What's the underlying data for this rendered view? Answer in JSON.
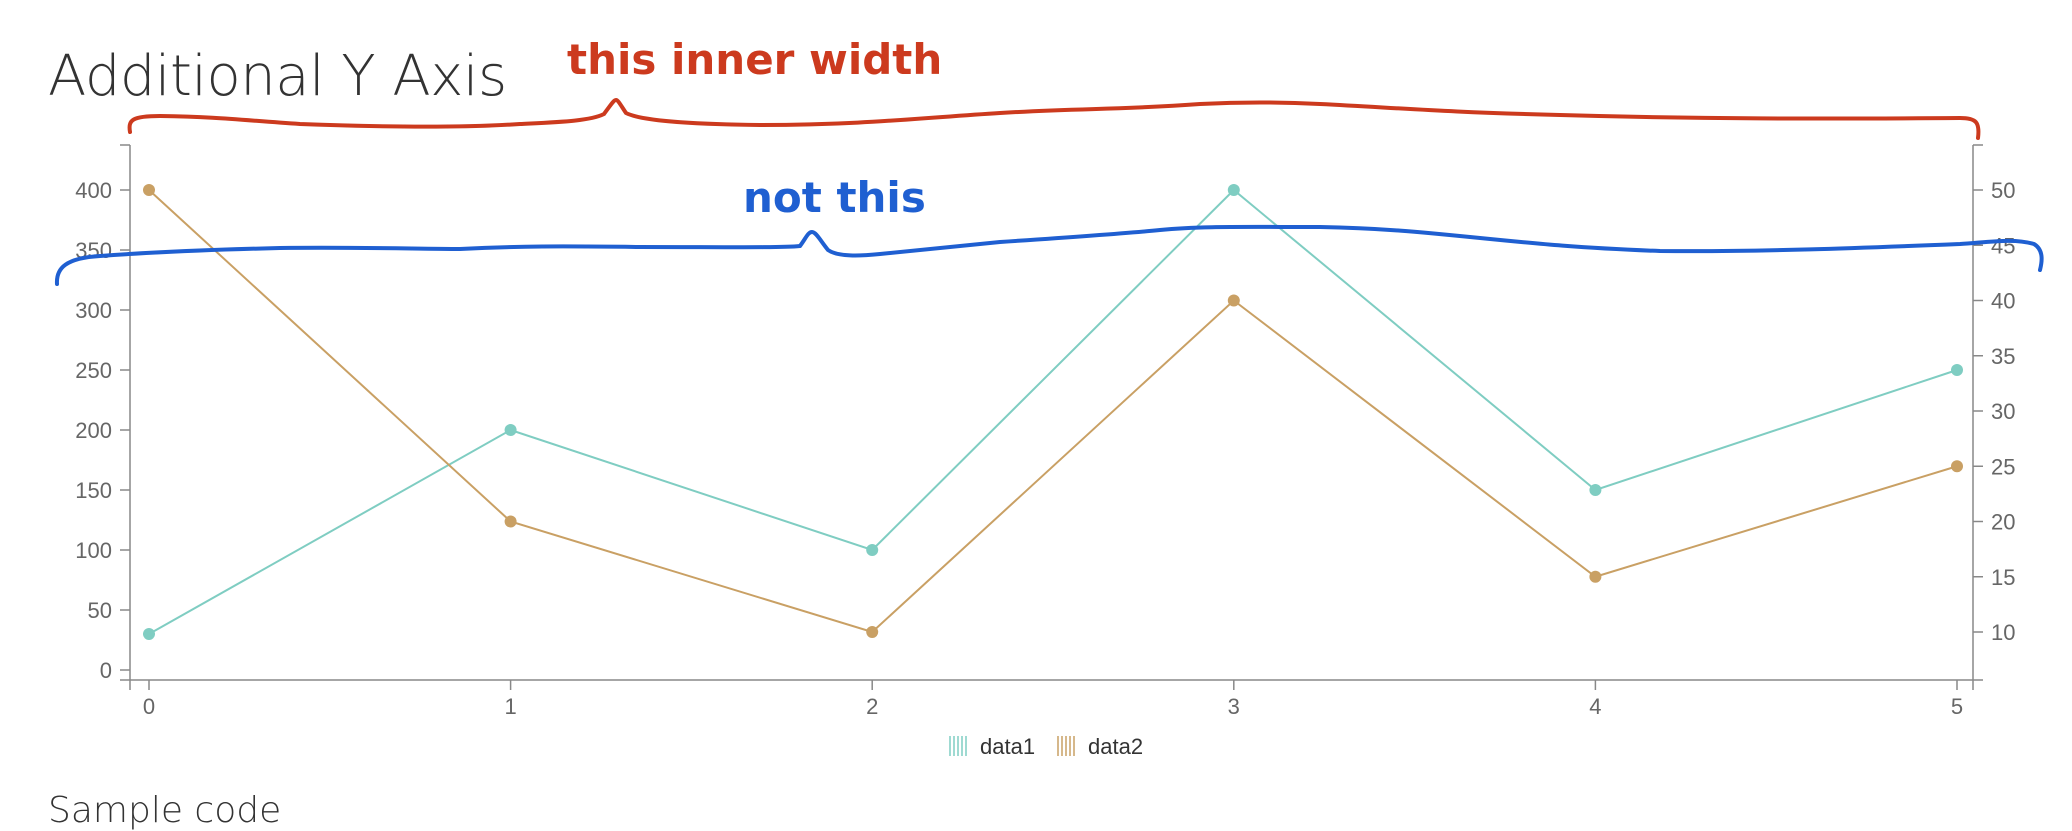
{
  "page": {
    "title": "Additional Y Axis",
    "section_title": "Sample code"
  },
  "annotations": {
    "inner_label": "this inner width",
    "outer_label": "not this",
    "inner_color": "#cc3a1e",
    "outer_color": "#1f5fd1"
  },
  "chart_data": {
    "type": "line",
    "title": "",
    "x": [
      0,
      1,
      2,
      3,
      4,
      5
    ],
    "xlabel": "",
    "ylabel": "",
    "y2label": "",
    "ylim": [
      0,
      400
    ],
    "y_ticks": [
      0,
      50,
      100,
      150,
      200,
      250,
      300,
      350,
      400
    ],
    "y2lim": [
      10,
      50
    ],
    "y2_ticks": [
      10,
      15,
      20,
      25,
      30,
      35,
      40,
      45,
      50
    ],
    "grid": false,
    "legend": "bottom-center",
    "series": [
      {
        "name": "data1",
        "axis": "y",
        "color": "#7fcdc2",
        "values": [
          30,
          200,
          100,
          400,
          150,
          250
        ]
      },
      {
        "name": "data2",
        "axis": "y2",
        "color": "#c9a064",
        "values": [
          50,
          20,
          10,
          40,
          15,
          25
        ]
      }
    ]
  }
}
